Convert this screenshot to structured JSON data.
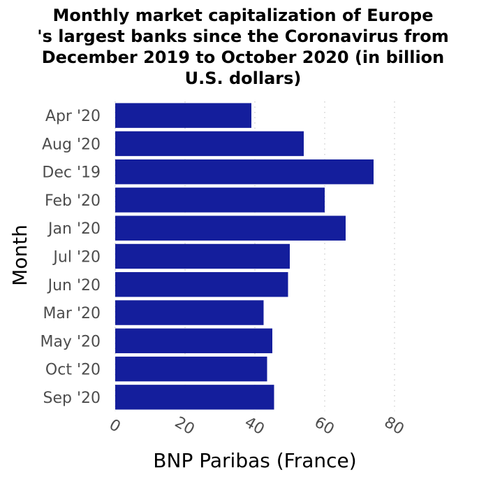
{
  "chart_data": {
    "type": "bar",
    "orientation": "horizontal",
    "title_lines": [
      "Monthly market capitalization of Europe",
      "'s largest banks since the Coronavirus from",
      "December 2019 to October 2020 (in billion",
      "U.S. dollars)"
    ],
    "title": "Monthly market capitalization of Europe 's largest banks since the Coronavirus from December 2019 to October 2020 (in billion U.S. dollars)",
    "xlabel": "BNP Paribas (France)",
    "ylabel": "Month",
    "xlim": [
      0,
      80
    ],
    "xticks": [
      "0",
      "20",
      "40",
      "60",
      "80"
    ],
    "grid": "vertical dotted",
    "bar_color": "#141e9c",
    "categories": [
      "Apr '20",
      "Aug '20",
      "Dec '19",
      "Feb '20",
      "Jan '20",
      "Jul '20",
      "Jun '20",
      "Mar '20",
      "May '20",
      "Oct '20",
      "Sep '20"
    ],
    "values": [
      39,
      54,
      74,
      60,
      66,
      50,
      49.5,
      42.5,
      45,
      43.5,
      45.5
    ]
  }
}
